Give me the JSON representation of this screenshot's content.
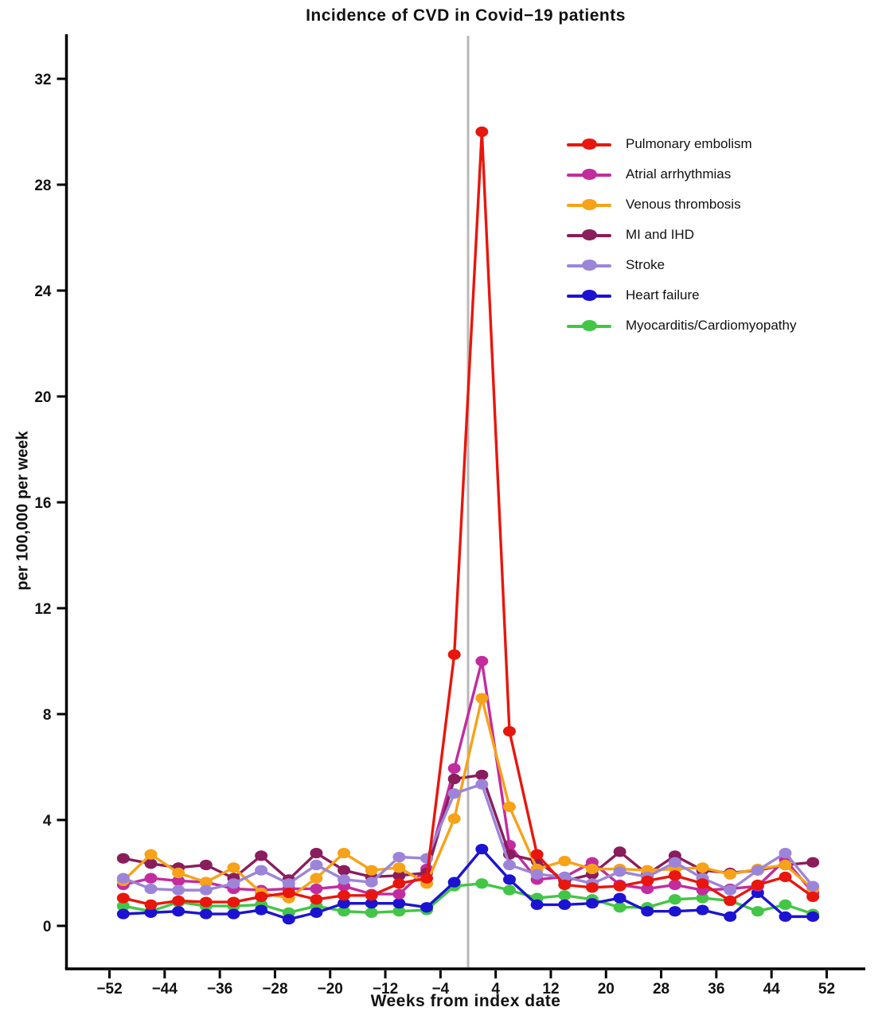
{
  "title": "Incidence of CVD in Covid−19 patients",
  "chart_data": {
    "type": "line",
    "title": "Incidence of CVD in Covid−19 patients",
    "xlabel": "Weeks from index date",
    "ylabel": "per 100,000 per week",
    "grid": false,
    "legend_position": "upper-right-inside",
    "axis_color": "#000000",
    "reference_line": {
      "x": 0,
      "color": "#b9b9b9"
    },
    "xlim": [
      -58,
      58
    ],
    "ylim": [
      -1.6,
      33.6
    ],
    "x_ticks": [
      -52,
      -44,
      -36,
      -28,
      -20,
      -12,
      -4,
      4,
      12,
      20,
      28,
      36,
      44,
      52
    ],
    "x_tick_labels": [
      "−52",
      "−44",
      "−36",
      "−28",
      "−20",
      "−12",
      "−4",
      "4",
      "12",
      "20",
      "28",
      "36",
      "44",
      "52"
    ],
    "y_ticks": [
      0,
      4,
      8,
      12,
      16,
      20,
      24,
      28,
      32
    ],
    "y_tick_labels": [
      "0",
      "4",
      "8",
      "12",
      "16",
      "20",
      "24",
      "28",
      "32"
    ],
    "x": [
      -50,
      -46,
      -42,
      -38,
      -34,
      -30,
      -26,
      -22,
      -18,
      -14,
      -10,
      -6,
      -2,
      2,
      6,
      10,
      14,
      18,
      22,
      26,
      30,
      34,
      38,
      42,
      46,
      50
    ],
    "series": [
      {
        "name": "Pulmonary embolism",
        "color": "#e8160d",
        "values": [
          1.05,
          0.8,
          0.95,
          0.9,
          0.9,
          1.1,
          1.25,
          1.0,
          1.15,
          1.15,
          1.6,
          1.8,
          10.25,
          30.0,
          7.35,
          2.7,
          1.55,
          1.45,
          1.5,
          1.7,
          1.9,
          1.6,
          0.95,
          1.55,
          1.85,
          1.1
        ]
      },
      {
        "name": "Atrial arrhythmias",
        "color": "#c32c9e",
        "values": [
          1.55,
          1.8,
          1.7,
          1.65,
          1.4,
          1.35,
          1.4,
          1.4,
          1.5,
          1.2,
          1.2,
          2.15,
          5.95,
          10.0,
          3.05,
          1.75,
          1.85,
          2.4,
          1.55,
          1.4,
          1.55,
          1.35,
          1.4,
          1.5,
          2.5,
          1.25
        ]
      },
      {
        "name": "Venous thrombosis",
        "color": "#f7a219",
        "values": [
          1.7,
          2.7,
          2.0,
          1.65,
          2.2,
          1.25,
          1.05,
          1.8,
          2.75,
          2.1,
          2.2,
          1.6,
          4.05,
          8.6,
          4.5,
          2.15,
          2.45,
          2.15,
          2.15,
          2.1,
          2.15,
          2.2,
          1.95,
          2.15,
          2.3,
          1.4
        ]
      },
      {
        "name": "MI and IHD",
        "color": "#8a1d5c",
        "values": [
          2.55,
          2.35,
          2.2,
          2.3,
          1.8,
          2.65,
          1.75,
          2.75,
          2.1,
          1.85,
          1.9,
          2.0,
          5.55,
          5.7,
          2.7,
          2.45,
          1.7,
          1.95,
          2.8,
          1.95,
          2.65,
          2.1,
          2.0,
          2.1,
          2.3,
          2.4
        ]
      },
      {
        "name": "Stroke",
        "color": "#9c85d8",
        "values": [
          1.8,
          1.4,
          1.35,
          1.35,
          1.6,
          2.1,
          1.6,
          2.3,
          1.75,
          1.65,
          2.6,
          2.55,
          5.0,
          5.35,
          2.3,
          1.95,
          1.85,
          1.6,
          2.05,
          1.85,
          2.4,
          1.8,
          1.35,
          2.1,
          2.75,
          1.5
        ]
      },
      {
        "name": "Heart failure",
        "color": "#1c13d2",
        "values": [
          0.45,
          0.5,
          0.55,
          0.45,
          0.45,
          0.6,
          0.25,
          0.5,
          0.85,
          0.85,
          0.85,
          0.7,
          1.65,
          2.9,
          1.75,
          0.8,
          0.8,
          0.85,
          1.05,
          0.55,
          0.55,
          0.6,
          0.35,
          1.25,
          0.35,
          0.35
        ]
      },
      {
        "name": "Myocarditis/Cardiomyopathy",
        "color": "#43c646",
        "values": [
          0.75,
          0.55,
          0.9,
          0.75,
          0.75,
          0.8,
          0.5,
          0.75,
          0.55,
          0.5,
          0.55,
          0.6,
          1.5,
          1.6,
          1.35,
          1.05,
          1.15,
          1.0,
          0.7,
          0.7,
          1.0,
          1.05,
          0.95,
          0.55,
          0.8,
          0.45
        ]
      }
    ]
  }
}
